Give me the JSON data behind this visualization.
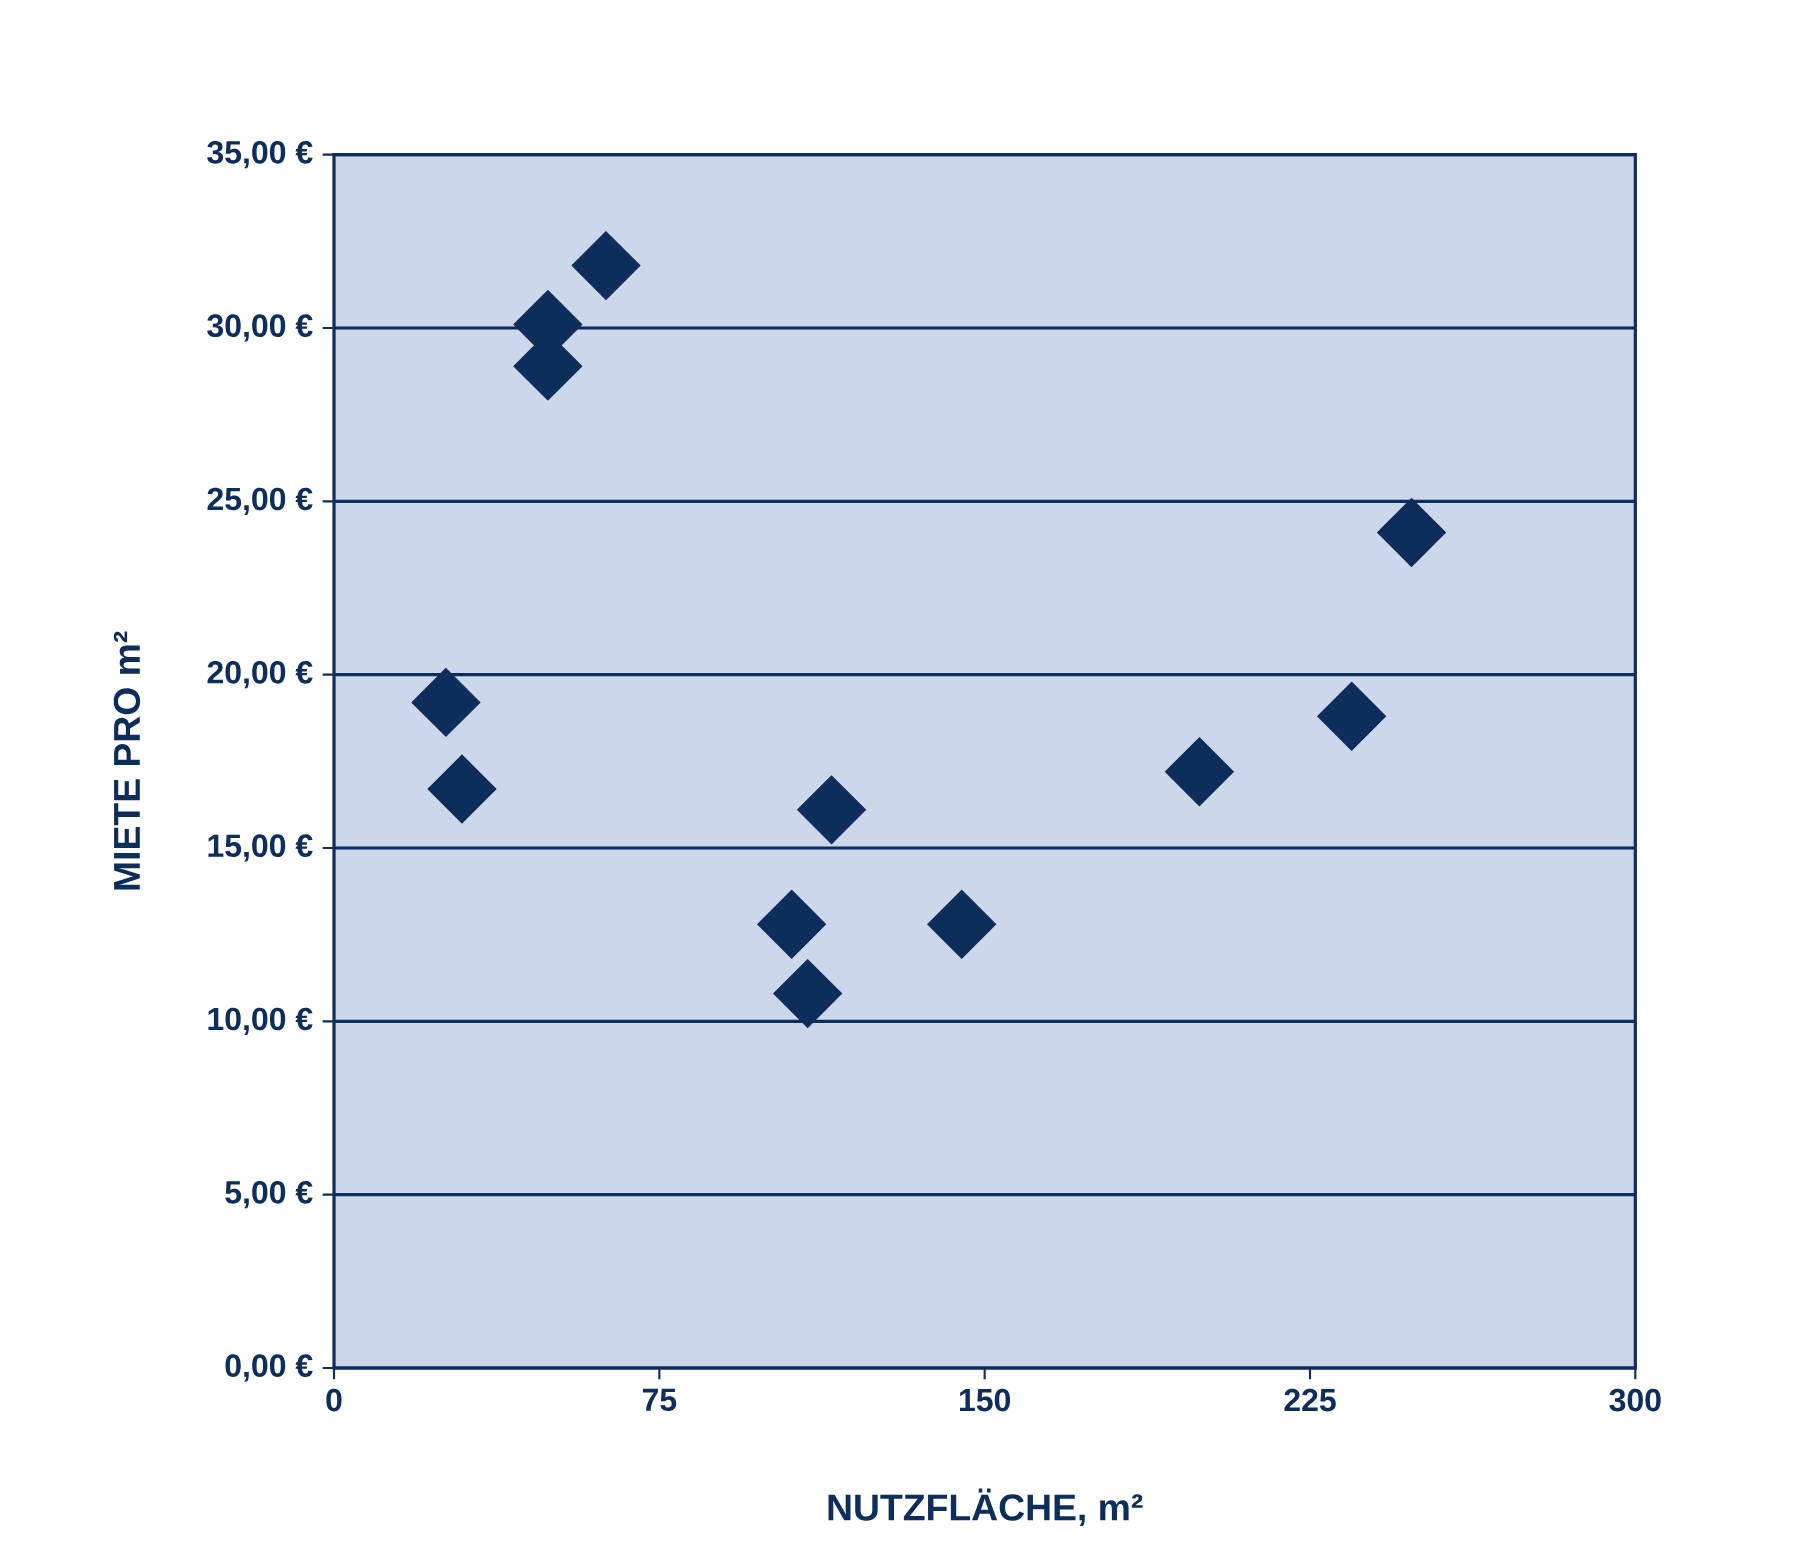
{
  "chart_data": {
    "type": "scatter",
    "xlabel": "NUTZFLÄCHE, m²",
    "ylabel": "MIETE PRO m²",
    "x": [
      25.8,
      29.5,
      49.3,
      49.3,
      62.7,
      105.5,
      109.2,
      114.7,
      144.7,
      199.5,
      234.6,
      248.4
    ],
    "values": [
      19.2,
      16.7,
      30.1,
      28.9,
      31.8,
      12.8,
      10.8,
      16.1,
      12.8,
      17.2,
      18.8,
      24.1
    ],
    "color": "#0d2d5a",
    "marker": "diamond",
    "grid": "y",
    "xlim": [
      0,
      300
    ],
    "xticks": [
      0,
      75,
      150,
      225,
      300
    ],
    "ylim": [
      0,
      35
    ],
    "yticks": [
      {
        "value": 0,
        "label": "0,00 €"
      },
      {
        "value": 5,
        "label": "5,00 €"
      },
      {
        "value": 10,
        "label": "10,00 €"
      },
      {
        "value": 15,
        "label": "15,00 €"
      },
      {
        "value": 20,
        "label": "20,00 €"
      },
      {
        "value": 25,
        "label": "25,00 €"
      },
      {
        "value": 30,
        "label": "30,00 €"
      },
      {
        "value": 35,
        "label": "35,00 €"
      }
    ]
  }
}
